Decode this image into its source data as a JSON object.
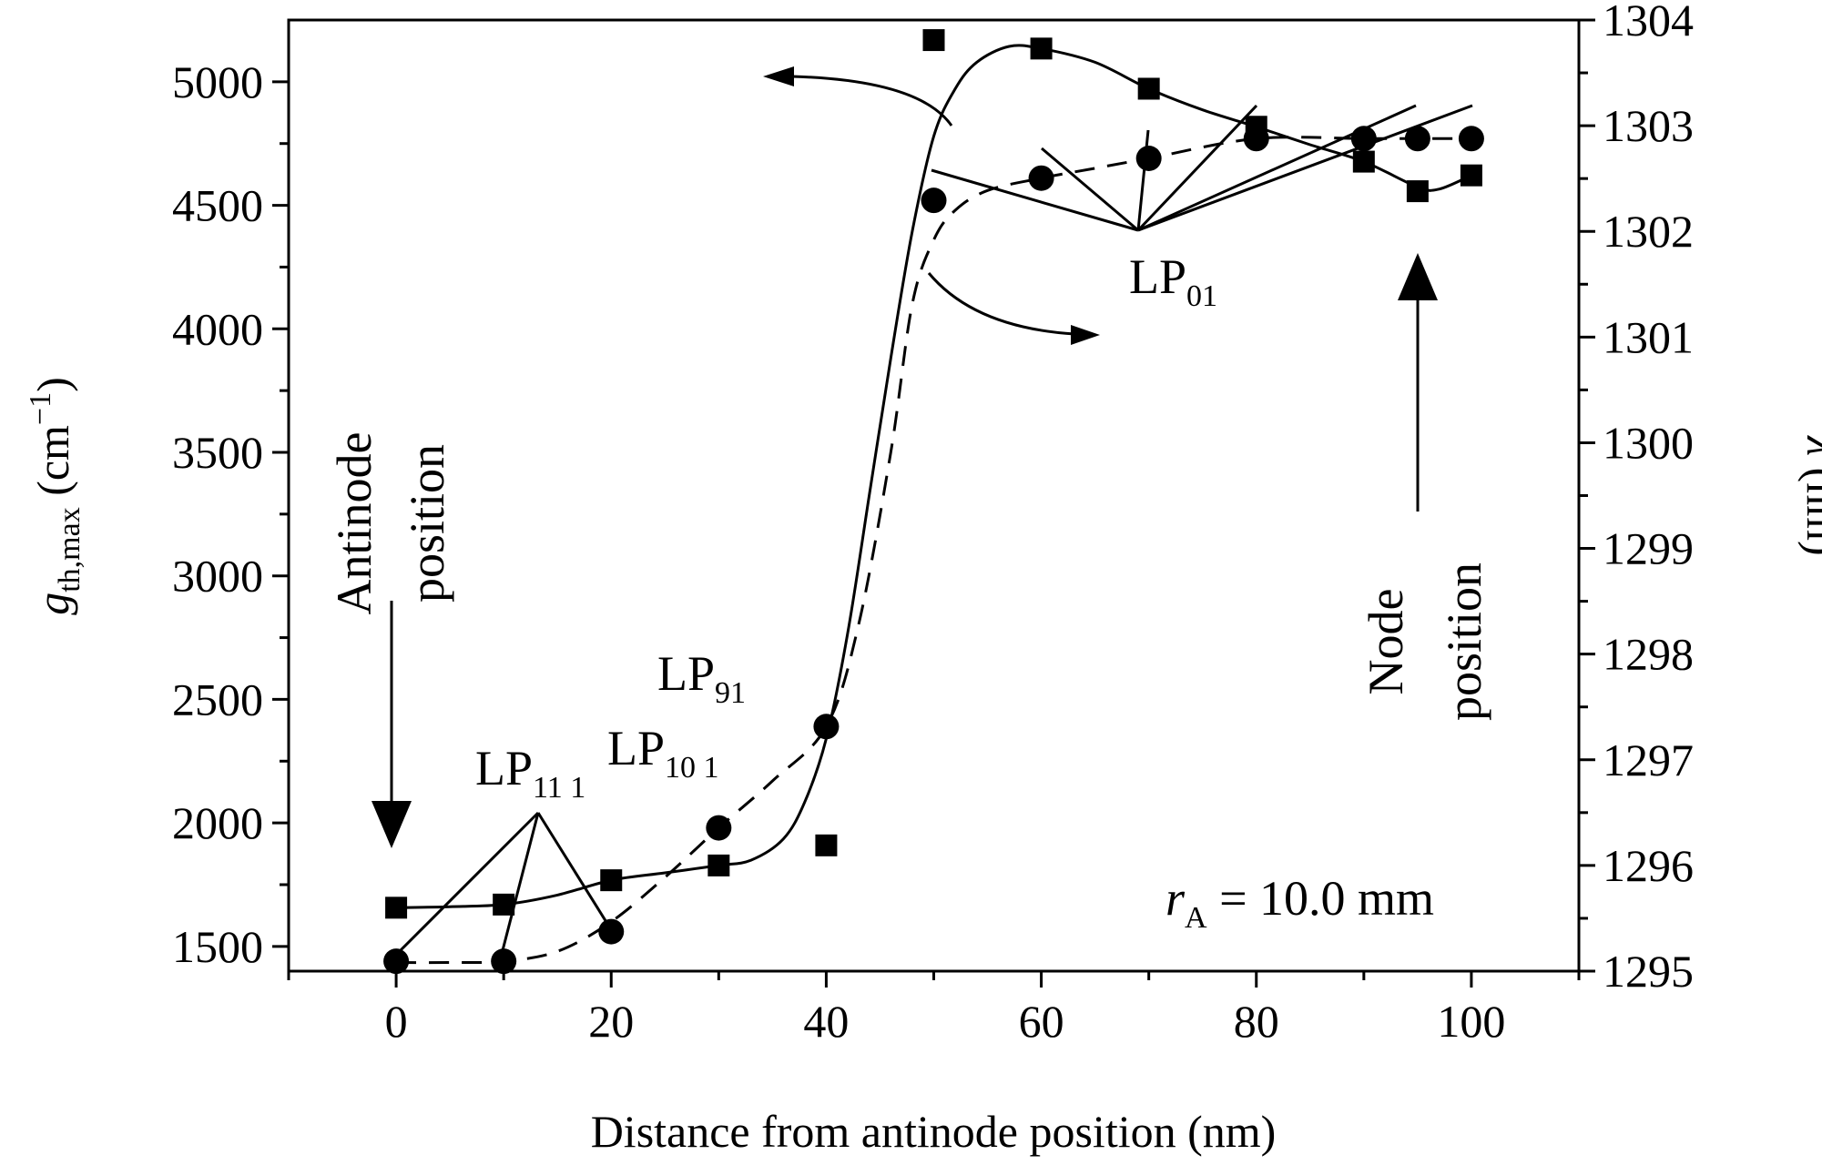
{
  "chart_data": {
    "type": "scatter",
    "xlabel": "Distance from antinode position (nm)",
    "ylabel_left": {
      "symbol": "g",
      "subscript": "th,max",
      "unit": "(cm",
      "unit_sup": "−1",
      "unit_close": ")"
    },
    "ylabel_right": {
      "symbol": "λ",
      "unit": "(nm)"
    },
    "xlim": [
      -10,
      110
    ],
    "ylim_left": [
      1400,
      5250
    ],
    "ylim_right": [
      1295,
      1304
    ],
    "x_ticks": [
      0,
      20,
      40,
      60,
      80,
      100
    ],
    "x_tick_labels": [
      "0",
      "20",
      "40",
      "60",
      "80",
      "100"
    ],
    "y_left_ticks": [
      1500,
      2000,
      2500,
      3000,
      3500,
      4000,
      4500,
      5000
    ],
    "y_left_tick_labels": [
      "1500",
      "2000",
      "2500",
      "3000",
      "3500",
      "4000",
      "4500",
      "5000"
    ],
    "y_right_ticks": [
      1295,
      1296,
      1297,
      1298,
      1299,
      1300,
      1301,
      1302,
      1303,
      1304
    ],
    "y_right_tick_labels": [
      "1295",
      "1296",
      "1297",
      "1298",
      "1299",
      "1300",
      "1301",
      "1302",
      "1303",
      "1304"
    ],
    "series": [
      {
        "axis": "left",
        "marker": "circle",
        "line": "dashed",
        "x": [
          0,
          10,
          20,
          30,
          40,
          50,
          60,
          70,
          80,
          90,
          95,
          100
        ],
        "y": [
          1440,
          1440,
          1560,
          1980,
          2390,
          4520,
          4610,
          4690,
          4770,
          4770,
          4770,
          4770
        ],
        "curve_x": [
          0,
          5,
          10,
          15,
          20,
          25,
          30,
          35,
          40,
          43,
          46,
          48,
          50,
          52,
          55,
          60,
          65,
          70,
          80,
          90,
          95,
          100
        ],
        "curve_y": [
          1435,
          1435,
          1440,
          1480,
          1600,
          1780,
          1980,
          2170,
          2390,
          2800,
          3500,
          4100,
          4360,
          4480,
          4560,
          4610,
          4650,
          4690,
          4770,
          4770,
          4770,
          4770
        ]
      },
      {
        "axis": "right",
        "marker": "square",
        "line": "solid",
        "x": [
          0,
          10,
          20,
          30,
          40,
          50,
          60,
          70,
          80,
          90,
          95,
          100
        ],
        "y": [
          1295.6,
          1295.63,
          1295.86,
          1296.0,
          1296.19,
          1303.81,
          1303.73,
          1303.35,
          1302.99,
          1302.66,
          1302.38,
          1302.53
        ],
        "curve_x": [
          0,
          5,
          10,
          15,
          20,
          25,
          30,
          33,
          36,
          38,
          40,
          42,
          44,
          46,
          48,
          50,
          52,
          54,
          57,
          60,
          65,
          70,
          75,
          80,
          85,
          90,
          95,
          97,
          100
        ],
        "curve_y": [
          1295.6,
          1295.61,
          1295.63,
          1295.72,
          1295.86,
          1295.93,
          1296.0,
          1296.05,
          1296.25,
          1296.6,
          1297.2,
          1298.2,
          1299.5,
          1300.8,
          1302.0,
          1302.9,
          1303.35,
          1303.6,
          1303.75,
          1303.73,
          1303.6,
          1303.35,
          1303.15,
          1302.99,
          1302.82,
          1302.66,
          1302.42,
          1302.4,
          1302.53
        ]
      }
    ],
    "annotations": {
      "antinode": [
        "Antinode",
        "position"
      ],
      "node": [
        "Node",
        "position"
      ],
      "lp01": {
        "main": "LP",
        "sub": "01"
      },
      "lp11": {
        "main": "LP",
        "sub": "11 1"
      },
      "lp101": {
        "main": "LP",
        "sub": "10 1"
      },
      "lp91": {
        "main": "LP",
        "sub": "91"
      },
      "ra": {
        "symbol": "r",
        "sub": "A",
        "value": " = 10.0 mm"
      }
    },
    "grid": false
  }
}
